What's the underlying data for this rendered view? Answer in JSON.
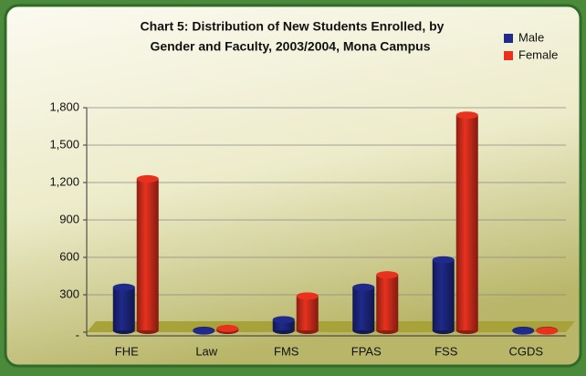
{
  "chart_data": {
    "type": "bar",
    "title": "Chart 5:   Distribution of New Students Enrolled, by",
    "subtitle": "Gender and Faculty, 2003/2004, Mona Campus",
    "categories": [
      "FHE",
      "Law",
      "FMS",
      "FPAS",
      "FSS",
      "CGDS"
    ],
    "series": [
      {
        "name": "Male",
        "color": "#1f2a8a",
        "values": [
          360,
          10,
          100,
          360,
          580,
          10
        ]
      },
      {
        "name": "Female",
        "color": "#e8321e",
        "values": [
          1230,
          30,
          290,
          460,
          1740,
          10
        ]
      }
    ],
    "ylim": [
      0,
      1800
    ],
    "yticks": [
      {
        "value": 0,
        "label": "-"
      },
      300,
      600,
      900,
      {
        "value": 1200,
        "label": "1,200"
      },
      {
        "value": 1500,
        "label": "1,500"
      },
      {
        "value": 1800,
        "label": "1,800"
      }
    ],
    "grid": true,
    "legend": "top-right"
  }
}
